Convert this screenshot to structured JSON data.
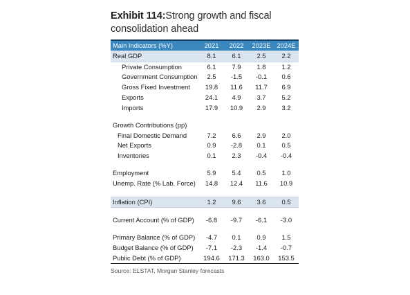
{
  "exhibit": {
    "number_label": "Exhibit 114:",
    "title_text": "Strong growth and fiscal consolidation ahead"
  },
  "table": {
    "header": {
      "label": "Main Indicators (%Y)",
      "years": [
        "2021",
        "2022",
        "2023E",
        "2024E"
      ]
    },
    "rows": [
      {
        "label": "Real GDP",
        "values": [
          "8.1",
          "6.1",
          "2.5",
          "2.2"
        ],
        "indent": 0,
        "shaded": true
      },
      {
        "label": "Private Consumption",
        "values": [
          "6.1",
          "7.9",
          "1.8",
          "1.2"
        ],
        "indent": 2,
        "shaded": false
      },
      {
        "label": "Government Consumption",
        "values": [
          "2.5",
          "-1.5",
          "-0.1",
          "0.6"
        ],
        "indent": 2,
        "shaded": false
      },
      {
        "label": "Gross Fixed Investment",
        "values": [
          "19.8",
          "11.6",
          "11.7",
          "6.9"
        ],
        "indent": 2,
        "shaded": false
      },
      {
        "label": "Exports",
        "values": [
          "24.1",
          "4.9",
          "3.7",
          "5.2"
        ],
        "indent": 2,
        "shaded": false
      },
      {
        "label": "Imports",
        "values": [
          "17.9",
          "10.9",
          "2.9",
          "3.2"
        ],
        "indent": 2,
        "shaded": false
      },
      {
        "blank": true
      },
      {
        "label": "Growth Contributions (pp)",
        "values": [
          "",
          "",
          "",
          ""
        ],
        "indent": 0,
        "shaded": false
      },
      {
        "label": "Final Domestic Demand",
        "values": [
          "7.2",
          "6.6",
          "2.9",
          "2.0"
        ],
        "indent": 1,
        "shaded": false
      },
      {
        "label": "Net Exports",
        "values": [
          "0.9",
          "-2.8",
          "0.1",
          "0.5"
        ],
        "indent": 1,
        "shaded": false
      },
      {
        "label": "Inventories",
        "values": [
          "0.1",
          "2.3",
          "-0.4",
          "-0.4"
        ],
        "indent": 1,
        "shaded": false
      },
      {
        "blank": true
      },
      {
        "label": "Employment",
        "values": [
          "5.9",
          "5.4",
          "0.5",
          "1.0"
        ],
        "indent": 0,
        "shaded": false
      },
      {
        "label": "Unemp. Rate (% Lab. Force)",
        "values": [
          "14.8",
          "12.4",
          "11.6",
          "10.9"
        ],
        "indent": 0,
        "shaded": false
      },
      {
        "blank": true
      },
      {
        "label": "Inflation (CPI)",
        "values": [
          "1.2",
          "9.6",
          "3.6",
          "0.5"
        ],
        "indent": 0,
        "shaded": true
      },
      {
        "blank": true
      },
      {
        "label": "Current Account (% of GDP)",
        "values": [
          "-6.8",
          "-9.7",
          "-6.1",
          "-3.0"
        ],
        "indent": 0,
        "shaded": false
      },
      {
        "blank": true
      },
      {
        "label": "Primary Balance (% of GDP)",
        "values": [
          "-4.7",
          "0.1",
          "0.9",
          "1.5"
        ],
        "indent": 0,
        "shaded": false
      },
      {
        "label": "Budget Balance (% of GDP)",
        "values": [
          "-7.1",
          "-2.3",
          "-1.4",
          "-0.7"
        ],
        "indent": 0,
        "shaded": false
      },
      {
        "label": "Public Debt (% of GDP)",
        "values": [
          "194.6",
          "171.3",
          "163.0",
          "153.5"
        ],
        "indent": 0,
        "shaded": false,
        "last": true
      }
    ]
  },
  "source": "Source: ELSTAT, Morgan Stanley forecasts",
  "colors": {
    "header_bg": "#3a87bd",
    "shaded_row_bg": "#dbe5ef",
    "title_rule": "#1e3f66"
  }
}
